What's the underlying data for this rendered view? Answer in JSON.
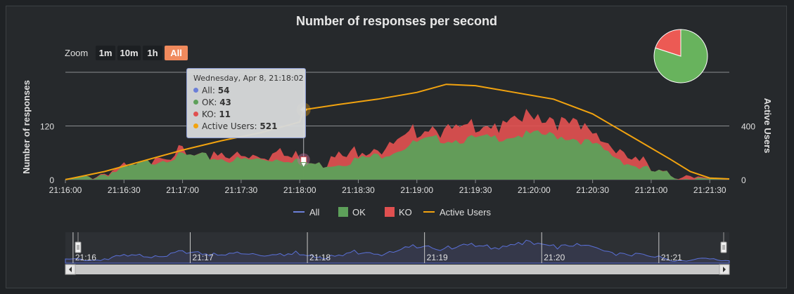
{
  "title": "Number of responses per second",
  "zoom": {
    "label": "Zoom",
    "buttons": [
      "1m",
      "10m",
      "1h",
      "All"
    ],
    "active": "All"
  },
  "colors": {
    "all": "#6b7fd8",
    "ok": "#5da05a",
    "ko": "#e05050",
    "users": "#f2a30f",
    "pie_ok": "#68b35d",
    "pie_ko": "#ec5a54"
  },
  "tooltip": {
    "header": "Wednesday, Apr 8, 21:18:02",
    "rows": [
      {
        "label": "All",
        "value": "54",
        "color": "#6b7fd8"
      },
      {
        "label": "OK",
        "value": "43",
        "color": "#5da05a"
      },
      {
        "label": "KO",
        "value": "11",
        "color": "#e05050"
      },
      {
        "label": "Active Users",
        "value": "521",
        "color": "#f2a30f"
      }
    ]
  },
  "legend": [
    {
      "name": "All",
      "kind": "line",
      "color": "#6b7fd8"
    },
    {
      "name": "OK",
      "kind": "box",
      "color": "#5da05a"
    },
    {
      "name": "KO",
      "kind": "box",
      "color": "#e05050"
    },
    {
      "name": "Active Users",
      "kind": "line",
      "color": "#f2a30f"
    }
  ],
  "navigator": {
    "labels": [
      "21:16",
      "21:17",
      "21:18",
      "21:19",
      "21:20",
      "21:21"
    ]
  },
  "chart_data": {
    "type": "area",
    "title": "Number of responses per second",
    "ylabel": "Number of responses",
    "y2label": "Active Users",
    "ylim": [
      0,
      240
    ],
    "y2lim": [
      0,
      800
    ],
    "yticks": [
      "0",
      "120"
    ],
    "y2ticks": [
      "0",
      "400"
    ],
    "xticks": [
      "21:16:00",
      "21:16:30",
      "21:17:00",
      "21:17:30",
      "21:18:00",
      "21:18:30",
      "21:19:00",
      "21:19:30",
      "21:20:00",
      "21:20:30",
      "21:21:00",
      "21:21:30"
    ],
    "x_seconds_range": [
      0,
      340
    ],
    "series": [
      {
        "name": "OK",
        "points": [
          [
            0,
            2
          ],
          [
            10,
            8
          ],
          [
            20,
            18
          ],
          [
            30,
            28
          ],
          [
            40,
            40
          ],
          [
            50,
            52
          ],
          [
            60,
            58
          ],
          [
            70,
            56
          ],
          [
            80,
            52
          ],
          [
            90,
            48
          ],
          [
            100,
            50
          ],
          [
            110,
            52
          ],
          [
            120,
            50
          ],
          [
            122,
            43
          ],
          [
            130,
            38
          ],
          [
            140,
            42
          ],
          [
            150,
            50
          ],
          [
            160,
            58
          ],
          [
            170,
            72
          ],
          [
            180,
            88
          ],
          [
            190,
            96
          ],
          [
            200,
            94
          ],
          [
            210,
            96
          ],
          [
            220,
            98
          ],
          [
            230,
            104
          ],
          [
            240,
            106
          ],
          [
            250,
            104
          ],
          [
            260,
            98
          ],
          [
            270,
            84
          ],
          [
            280,
            60
          ],
          [
            290,
            38
          ],
          [
            300,
            24
          ],
          [
            310,
            14
          ],
          [
            320,
            6
          ],
          [
            330,
            2
          ],
          [
            340,
            0
          ]
        ]
      },
      {
        "name": "KO",
        "points": [
          [
            0,
            0
          ],
          [
            10,
            0
          ],
          [
            20,
            2
          ],
          [
            30,
            4
          ],
          [
            40,
            6
          ],
          [
            50,
            8
          ],
          [
            60,
            8
          ],
          [
            70,
            10
          ],
          [
            80,
            14
          ],
          [
            90,
            18
          ],
          [
            100,
            22
          ],
          [
            110,
            24
          ],
          [
            120,
            14
          ],
          [
            122,
            11
          ],
          [
            130,
            14
          ],
          [
            140,
            28
          ],
          [
            150,
            26
          ],
          [
            160,
            26
          ],
          [
            170,
            28
          ],
          [
            180,
            30
          ],
          [
            190,
            32
          ],
          [
            200,
            34
          ],
          [
            210,
            34
          ],
          [
            220,
            36
          ],
          [
            230,
            42
          ],
          [
            240,
            46
          ],
          [
            250,
            44
          ],
          [
            260,
            42
          ],
          [
            270,
            34
          ],
          [
            280,
            26
          ],
          [
            290,
            20
          ],
          [
            300,
            14
          ],
          [
            310,
            8
          ],
          [
            320,
            4
          ],
          [
            330,
            1
          ],
          [
            340,
            0
          ]
        ]
      },
      {
        "name": "Active Users",
        "points": [
          [
            0,
            0
          ],
          [
            20,
            60
          ],
          [
            40,
            140
          ],
          [
            60,
            220
          ],
          [
            80,
            290
          ],
          [
            100,
            350
          ],
          [
            120,
            430
          ],
          [
            122,
            521
          ],
          [
            140,
            560
          ],
          [
            160,
            600
          ],
          [
            180,
            650
          ],
          [
            195,
            710
          ],
          [
            210,
            700
          ],
          [
            230,
            650
          ],
          [
            250,
            600
          ],
          [
            270,
            490
          ],
          [
            290,
            320
          ],
          [
            310,
            150
          ],
          [
            320,
            60
          ],
          [
            330,
            12
          ],
          [
            340,
            5
          ]
        ]
      }
    ],
    "pie": [
      {
        "name": "OK",
        "value": 80
      },
      {
        "name": "KO",
        "value": 20
      }
    ],
    "legend_position": "bottom",
    "grid": true
  }
}
